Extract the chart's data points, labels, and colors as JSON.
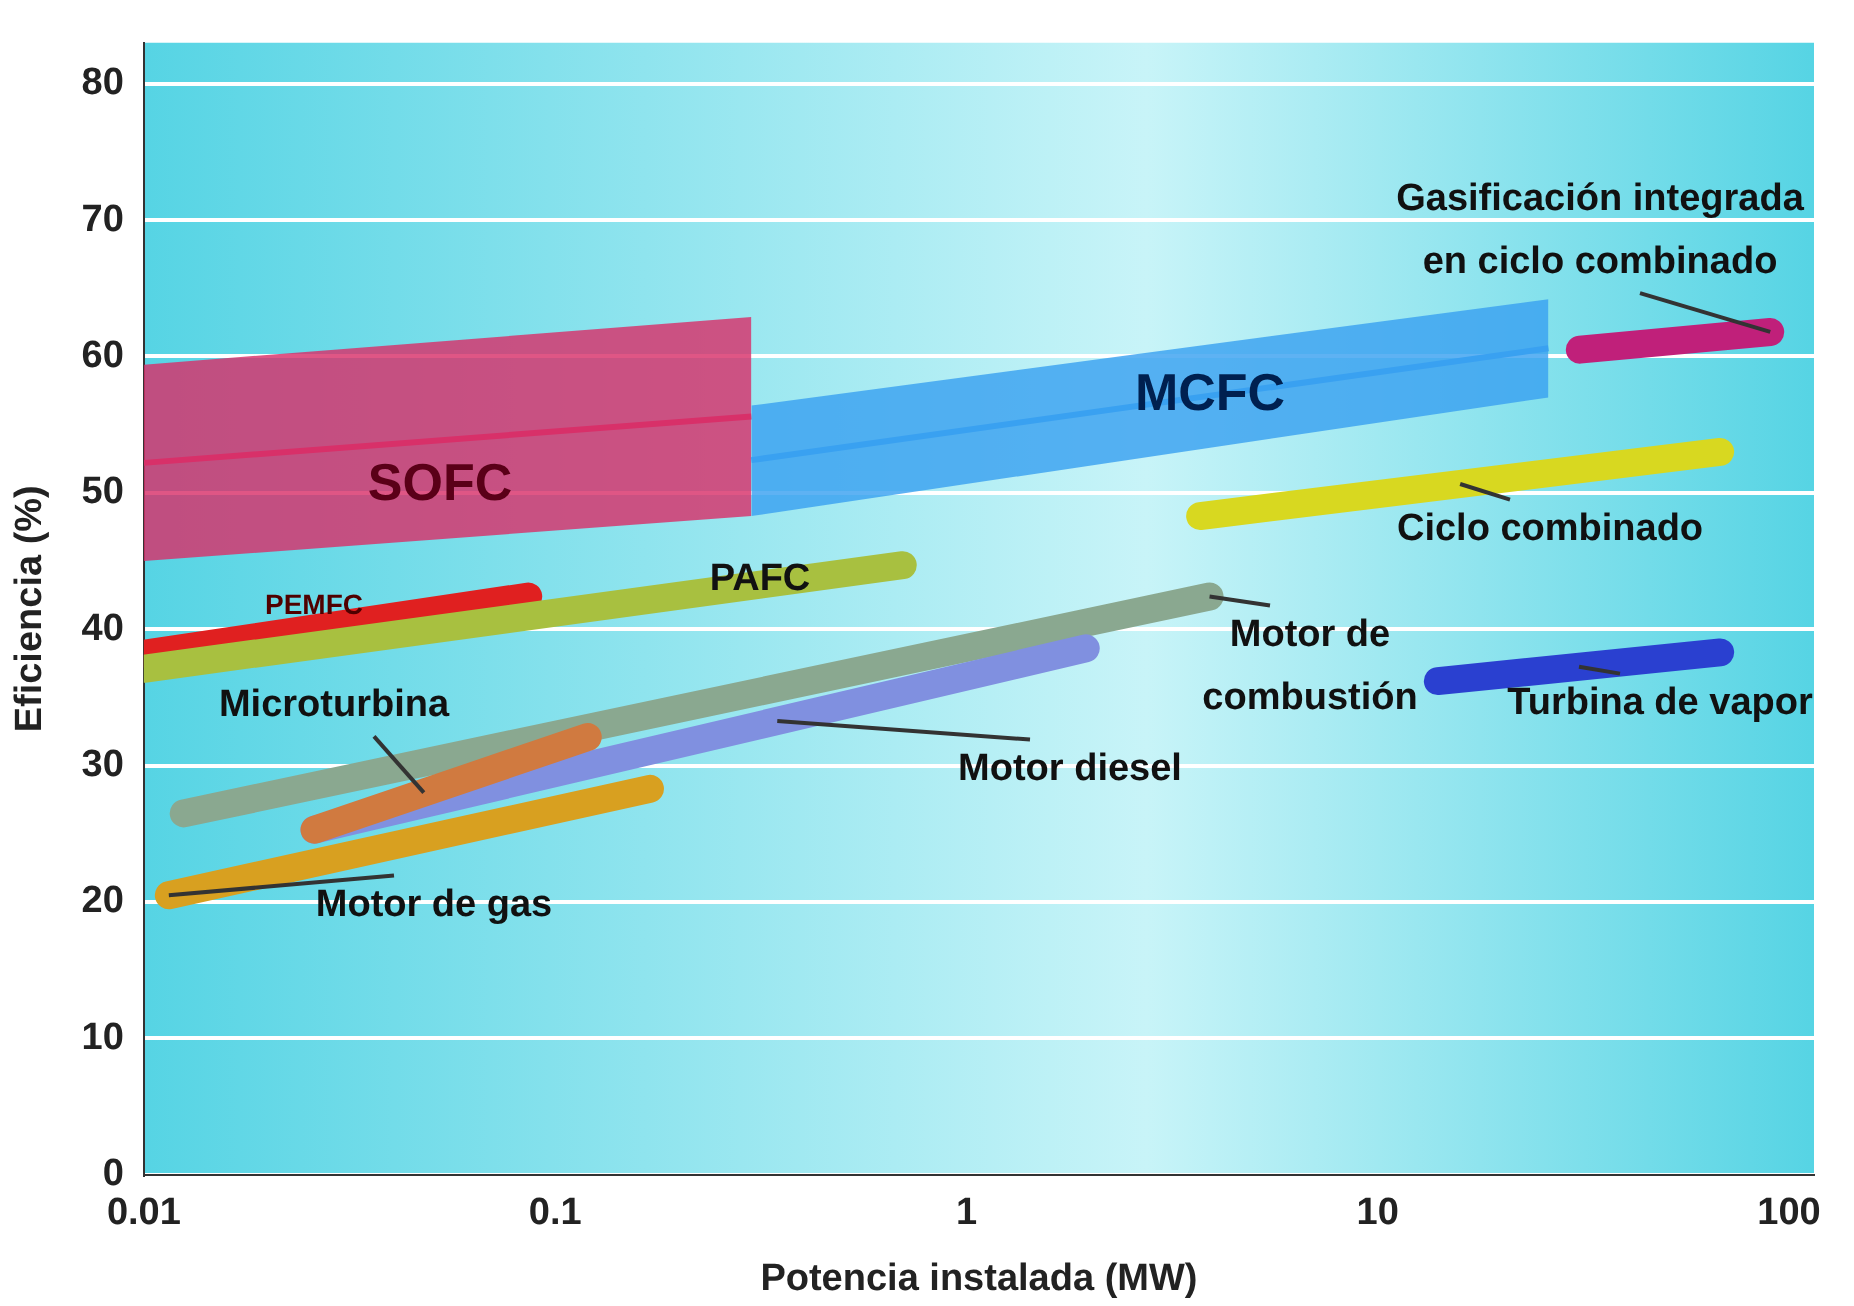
{
  "chart_data": {
    "type": "line",
    "xlabel": "Potencia instalada (MW)",
    "ylabel": "Eficiencia (%)",
    "log": "x",
    "xlim": [
      0.01,
      115
    ],
    "xticks": [
      0.01,
      0.1,
      1,
      10,
      100
    ],
    "ylim": [
      0,
      83
    ],
    "yticks": [
      0,
      10,
      20,
      30,
      40,
      50,
      60,
      70,
      80
    ],
    "grid": "y",
    "legend": false,
    "marker": "none",
    "series": [
      {
        "name": "SOFC",
        "color": "#d8306a",
        "x": [
          0.01,
          0.3
        ],
        "values": [
          52.2,
          55.6
        ],
        "lower": [
          45,
          48.3
        ],
        "upper": [
          59.4,
          62.9
        ]
      },
      {
        "name": "MCFC",
        "color": "#3aa0f0",
        "x": [
          0.3,
          26
        ],
        "values": [
          52.4,
          60.6
        ],
        "lower": [
          48.3,
          57
        ],
        "upper": [
          56.4,
          64.2
        ]
      },
      {
        "name": "Gasificación integrada en ciclo combinado",
        "color": "#c0207a",
        "x": [
          31,
          90
        ],
        "values": [
          60.5,
          61.8
        ]
      },
      {
        "name": "Ciclo combinado",
        "color": "#d8d820",
        "x": [
          3.7,
          68
        ],
        "values": [
          48.3,
          53
        ]
      },
      {
        "name": "Turbina de vapor",
        "color": "#2a40d0",
        "x": [
          14,
          68
        ],
        "values": [
          36.2,
          38.3
        ]
      },
      {
        "name": "Motor de combustión",
        "color": "#8aa890",
        "x": [
          0.0125,
          3.9
        ],
        "values": [
          26.5,
          42.4
        ]
      },
      {
        "name": "Motor diesel",
        "color": "#8090e0",
        "x": [
          0.026,
          1.95
        ],
        "values": [
          25.3,
          38.6
        ]
      },
      {
        "name": "Microturbina",
        "color": "#d07a40",
        "x": [
          0.026,
          0.12
        ],
        "values": [
          25.3,
          32.1
        ]
      },
      {
        "name": "Motor de gas",
        "color": "#d8a020",
        "x": [
          0.0115,
          0.17
        ],
        "values": [
          20.5,
          28.3
        ]
      },
      {
        "name": "PEMFC",
        "color": "#e02020",
        "x": [
          0.01,
          0.086
        ],
        "values": [
          38.2,
          42.4
        ]
      },
      {
        "name": "PAFC",
        "color": "#a8c040",
        "x": [
          0.01,
          0.7
        ],
        "values": [
          37.1,
          44.7
        ]
      }
    ]
  }
}
